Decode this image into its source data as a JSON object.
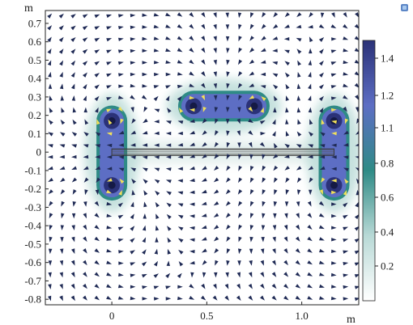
{
  "chart_data": {
    "type": "heatmap",
    "title": "",
    "x_unit": "m",
    "y_unit": "m",
    "xlim": [
      -0.35,
      1.3
    ],
    "ylim": [
      -0.83,
      0.77
    ],
    "x_ticks": [
      0,
      0.5,
      1.0
    ],
    "x_tick_labels": [
      "0",
      "0.5",
      "1.0"
    ],
    "y_ticks": [
      0.7,
      0.6,
      0.5,
      0.4,
      0.3,
      0.2,
      0.1,
      0,
      -0.1,
      -0.2,
      -0.3,
      -0.4,
      -0.5,
      -0.6,
      -0.7,
      -0.8
    ],
    "y_tick_labels": [
      "0.7",
      "0.6",
      "0.5",
      "0.4",
      "0.3",
      "0.2",
      "0.1",
      "0",
      "-0.1",
      "-0.2",
      "-0.3",
      "-0.4",
      "-0.5",
      "-0.6",
      "-0.7",
      "-0.8"
    ],
    "colorbar": {
      "range": [
        0,
        1.5
      ],
      "tick_values": [
        1.4,
        1.2,
        1.1,
        0.8,
        0.6,
        0.4,
        0.2
      ],
      "tick_labels": [
        "1.4",
        "1.2",
        "1.1",
        "0.8",
        "0.6",
        "0.4",
        "0.2"
      ],
      "colors": [
        "#ffffff",
        "#b8d9d6",
        "#2f8b86",
        "#5d6ec4",
        "#2b3278"
      ]
    },
    "sources": [
      {
        "x": 0.0,
        "y": 0.17
      },
      {
        "x": 0.0,
        "y": -0.18
      },
      {
        "x": 0.43,
        "y": 0.25
      },
      {
        "x": 0.75,
        "y": 0.25
      },
      {
        "x": 1.17,
        "y": 0.17
      },
      {
        "x": 1.17,
        "y": -0.18
      }
    ],
    "conductor": {
      "x_start": 0.0,
      "x_end": 1.17,
      "y": 0.0
    },
    "arrow_color": "#1f2a55",
    "arrow_highlight_color": "#f1e05a"
  }
}
